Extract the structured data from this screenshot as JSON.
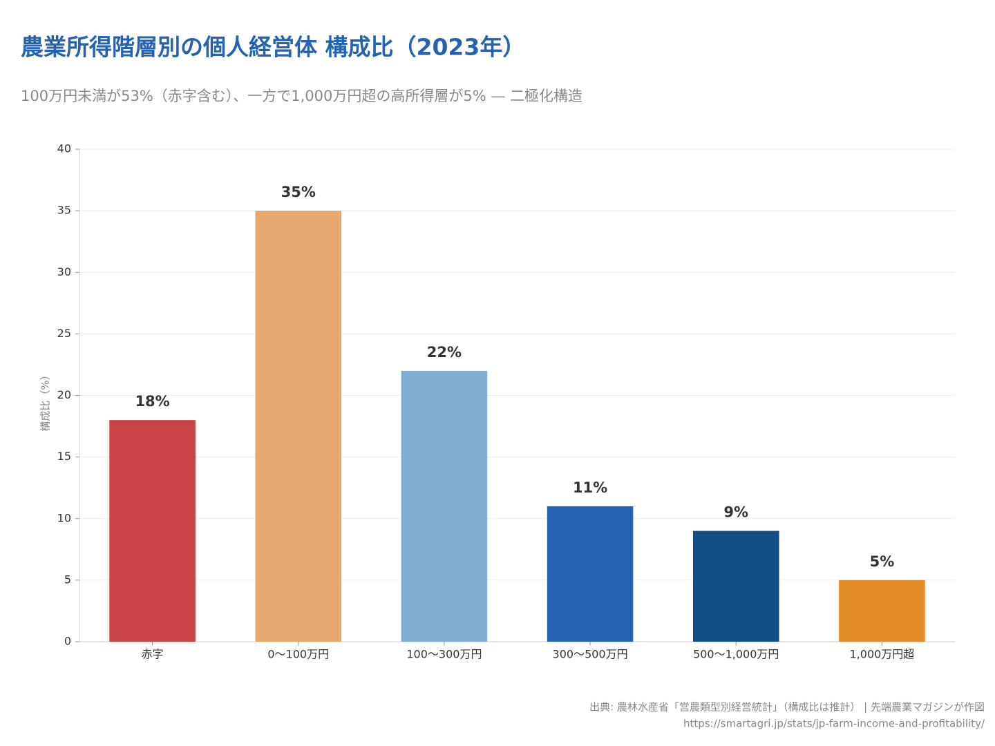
{
  "chart_data": {
    "type": "bar",
    "title": "農業所得階層別の個人経営体 構成比（2023年）",
    "subtitle": "100万円未満が53%（赤字含む）、一方で1,000万円超の高所得層が5% — 二極化構造",
    "ylabel": "構成比（%）",
    "categories": [
      "赤字",
      "0〜100万円",
      "100〜300万円",
      "300〜500万円",
      "500〜1,000万円",
      "1,000万円超"
    ],
    "values": [
      18,
      35,
      22,
      11,
      9,
      5
    ],
    "value_labels": [
      "18%",
      "35%",
      "22%",
      "11%",
      "9%",
      "5%"
    ],
    "colors": [
      "#c94244",
      "#e6a86f",
      "#80aed5",
      "#2563b0",
      "#134f87",
      "#e48e27"
    ],
    "ylim": [
      0,
      40
    ],
    "yticks": [
      0,
      5,
      10,
      15,
      20,
      25,
      30,
      35,
      40
    ],
    "grid": true,
    "source": "出典: 農林水産省「営農類型別経営統計」（構成比は推計） | 先端農業マガジンが作図",
    "url": "https://smartagri.jp/stats/jp-farm-income-and-profitability/"
  }
}
